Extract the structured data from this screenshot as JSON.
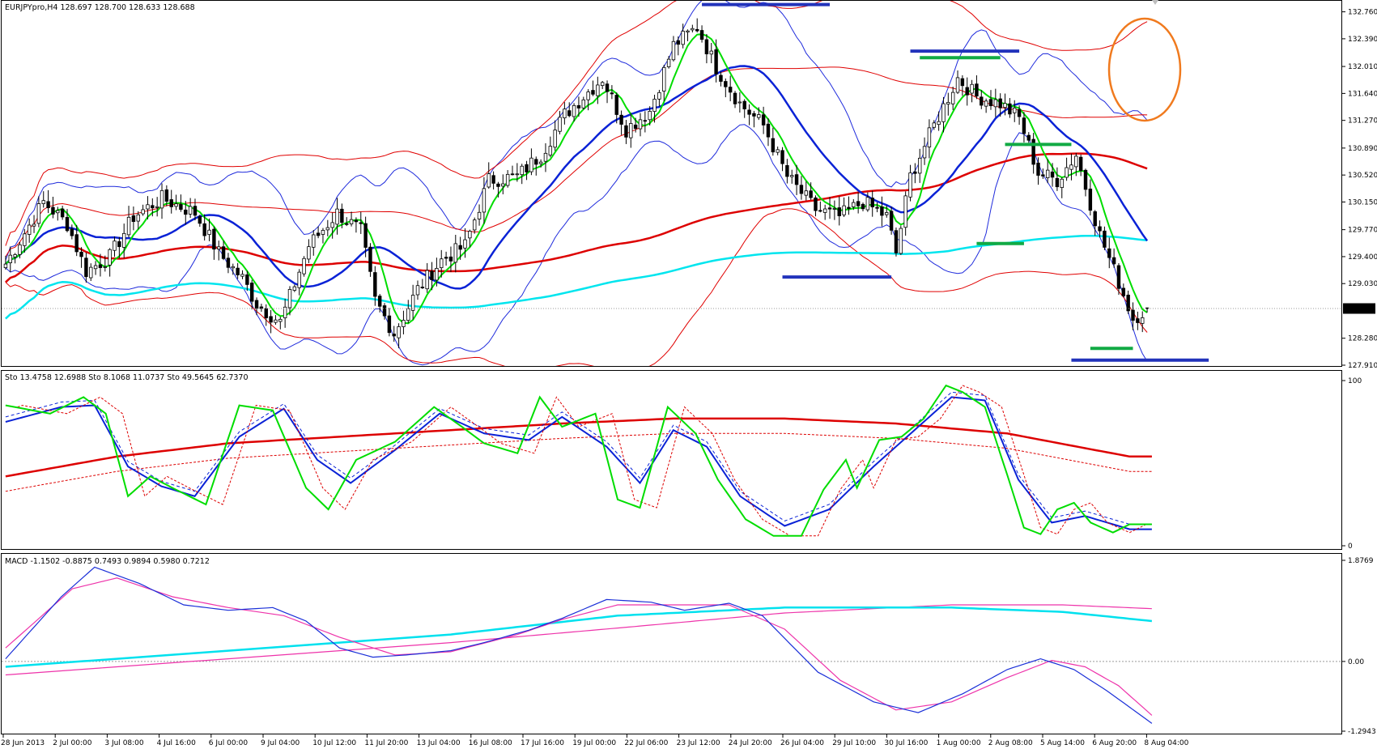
{
  "colors": {
    "background": "#ffffff",
    "frame": "#000000",
    "bull_body": "#ffffff",
    "bear_body": "#000000",
    "ma_fast": "#00dd00",
    "ma_mid": "#0a22d6",
    "ma_slow": "#dd0000",
    "ma_long": "#00e5ee",
    "band_blue": "#1f2bdc",
    "band_red": "#e00000",
    "marker_blue": "#2233bb",
    "marker_green": "#11aa44",
    "ellipse": "#f07a1e",
    "price_tag_bg": "#000000",
    "price_tag_text": "#ffffff",
    "macd_main": "#1a2fd8",
    "macd_signal": "#ee33aa",
    "macd_long": "#00e1ee",
    "grid_dotted": "#9a9a9a"
  },
  "header": {
    "price_info": "EURJPYpro,H4  128.697 128.700 128.633 128.688",
    "sto_info": "Sto 13.4758 12.6988  Sto 8.1068 11.0737  Sto 49.5645 62.7370",
    "macd_info": "MACD -1.1502 -0.8875 0.7493 0.9894 0.5980 0.7212"
  },
  "chart_data": [
    {
      "type": "candlestick",
      "symbol": "EURJPYpro",
      "timeframe": "H4",
      "ohlc_last": {
        "open": 128.697,
        "high": 128.7,
        "low": 128.633,
        "close": 128.688
      },
      "current_price_label": "128.688",
      "ylim": [
        127.91,
        132.9
      ],
      "y_ticks": [
        "132.760",
        "132.390",
        "132.010",
        "131.640",
        "131.270",
        "130.890",
        "130.520",
        "130.150",
        "129.770",
        "129.400",
        "129.030",
        "128.280",
        "127.910"
      ],
      "x_ticks": [
        "28 Jun 2013",
        "2 Jul 00:00",
        "3 Jul 08:00",
        "4 Jul 16:00",
        "6 Jul 00:00",
        "9 Jul 04:00",
        "10 Jul 12:00",
        "11 Jul 20:00",
        "13 Jul 04:00",
        "16 Jul 08:00",
        "17 Jul 16:00",
        "19 Jul 00:00",
        "22 Jul 06:00",
        "23 Jul 12:00",
        "24 Jul 20:00",
        "26 Jul 04:00",
        "29 Jul 10:00",
        "30 Jul 16:00",
        "1 Aug 00:00",
        "2 Aug 08:00",
        "5 Aug 14:00",
        "6 Aug 20:00",
        "8 Aug 04:00"
      ],
      "price_path": [
        [
          0,
          129.3
        ],
        [
          8,
          130.15
        ],
        [
          13,
          129.85
        ],
        [
          17,
          129.2
        ],
        [
          22,
          129.4
        ],
        [
          27,
          129.95
        ],
        [
          33,
          130.2
        ],
        [
          40,
          130.0
        ],
        [
          45,
          129.45
        ],
        [
          50,
          129.1
        ],
        [
          53,
          128.75
        ],
        [
          58,
          128.5
        ],
        [
          64,
          129.55
        ],
        [
          70,
          130.0
        ],
        [
          75,
          129.75
        ],
        [
          78,
          128.8
        ],
        [
          82,
          128.35
        ],
        [
          87,
          128.95
        ],
        [
          92,
          129.35
        ],
        [
          97,
          129.55
        ],
        [
          102,
          130.45
        ],
        [
          108,
          130.5
        ],
        [
          113,
          130.8
        ],
        [
          118,
          131.35
        ],
        [
          122,
          131.6
        ],
        [
          126,
          131.85
        ],
        [
          131,
          131.15
        ],
        [
          136,
          131.4
        ],
        [
          141,
          132.3
        ],
        [
          146,
          132.55
        ],
        [
          150,
          132.0
        ],
        [
          155,
          131.5
        ],
        [
          160,
          131.2
        ],
        [
          165,
          130.5
        ],
        [
          171,
          130.05
        ],
        [
          176,
          129.95
        ],
        [
          181,
          130.15
        ],
        [
          186,
          129.95
        ],
        [
          188,
          129.45
        ],
        [
          191,
          130.5
        ],
        [
          196,
          131.2
        ],
        [
          201,
          131.85
        ],
        [
          205,
          131.6
        ],
        [
          210,
          131.5
        ],
        [
          214,
          131.3
        ],
        [
          218,
          130.55
        ],
        [
          222,
          130.45
        ],
        [
          226,
          130.8
        ],
        [
          231,
          129.7
        ],
        [
          235,
          129.05
        ],
        [
          238,
          128.55
        ],
        [
          241,
          128.69
        ]
      ]
    },
    {
      "type": "line",
      "indicator": "Stochastic",
      "ylim": [
        0,
        100
      ],
      "y_ticks": [
        "100",
        "0"
      ],
      "main": [
        [
          0,
          85
        ],
        [
          8,
          80
        ],
        [
          14,
          90
        ],
        [
          18,
          80
        ],
        [
          22,
          30
        ],
        [
          26,
          42
        ],
        [
          30,
          35
        ],
        [
          36,
          25
        ],
        [
          42,
          85
        ],
        [
          48,
          82
        ],
        [
          54,
          35
        ],
        [
          58,
          22
        ],
        [
          63,
          52
        ],
        [
          70,
          63
        ],
        [
          77,
          84
        ],
        [
          82,
          72
        ],
        [
          86,
          62
        ],
        [
          92,
          56
        ],
        [
          96,
          90
        ],
        [
          100,
          72
        ],
        [
          106,
          80
        ],
        [
          110,
          28
        ],
        [
          114,
          23
        ],
        [
          119,
          84
        ],
        [
          124,
          68
        ],
        [
          128,
          40
        ],
        [
          133,
          16
        ],
        [
          138,
          6
        ],
        [
          143,
          6
        ],
        [
          147,
          34
        ],
        [
          151,
          52
        ],
        [
          153,
          35
        ],
        [
          157,
          64
        ],
        [
          161,
          66
        ],
        [
          165,
          77
        ],
        [
          169,
          97
        ],
        [
          172,
          93
        ],
        [
          176,
          84
        ],
        [
          180,
          43
        ],
        [
          183,
          11
        ],
        [
          186,
          7
        ],
        [
          189,
          22
        ],
        [
          192,
          26
        ],
        [
          195,
          14
        ],
        [
          199,
          8
        ],
        [
          202,
          13
        ]
      ],
      "signal": [
        [
          0,
          75
        ],
        [
          10,
          84
        ],
        [
          16,
          85
        ],
        [
          22,
          48
        ],
        [
          28,
          36
        ],
        [
          34,
          30
        ],
        [
          42,
          66
        ],
        [
          50,
          83
        ],
        [
          56,
          52
        ],
        [
          62,
          38
        ],
        [
          70,
          58
        ],
        [
          78,
          80
        ],
        [
          86,
          68
        ],
        [
          94,
          64
        ],
        [
          100,
          78
        ],
        [
          108,
          60
        ],
        [
          114,
          38
        ],
        [
          120,
          70
        ],
        [
          126,
          60
        ],
        [
          132,
          30
        ],
        [
          140,
          12
        ],
        [
          148,
          22
        ],
        [
          156,
          48
        ],
        [
          164,
          72
        ],
        [
          170,
          90
        ],
        [
          176,
          88
        ],
        [
          182,
          40
        ],
        [
          188,
          14
        ],
        [
          194,
          18
        ],
        [
          202,
          10
        ]
      ],
      "slow": [
        [
          0,
          42
        ],
        [
          20,
          54
        ],
        [
          40,
          62
        ],
        [
          60,
          66
        ],
        [
          80,
          70
        ],
        [
          100,
          74
        ],
        [
          120,
          77
        ],
        [
          140,
          77
        ],
        [
          160,
          74
        ],
        [
          180,
          68
        ],
        [
          202,
          54
        ]
      ]
    },
    {
      "type": "line",
      "indicator": "MACD",
      "ylim": [
        -1.2943,
        1.8769
      ],
      "y_ticks": [
        "1.8769",
        "0.00",
        "-1.2943"
      ],
      "main": [
        [
          0,
          0.05
        ],
        [
          10,
          1.2
        ],
        [
          16,
          1.75
        ],
        [
          24,
          1.45
        ],
        [
          32,
          1.05
        ],
        [
          40,
          0.95
        ],
        [
          48,
          1.0
        ],
        [
          54,
          0.75
        ],
        [
          60,
          0.25
        ],
        [
          66,
          0.08
        ],
        [
          72,
          0.12
        ],
        [
          80,
          0.2
        ],
        [
          86,
          0.35
        ],
        [
          94,
          0.58
        ],
        [
          100,
          0.8
        ],
        [
          108,
          1.15
        ],
        [
          116,
          1.1
        ],
        [
          122,
          0.95
        ],
        [
          130,
          1.08
        ],
        [
          136,
          0.85
        ],
        [
          146,
          -0.2
        ],
        [
          156,
          -0.75
        ],
        [
          164,
          -0.95
        ],
        [
          172,
          -0.6
        ],
        [
          180,
          -0.15
        ],
        [
          186,
          0.05
        ],
        [
          192,
          -0.15
        ],
        [
          198,
          -0.55
        ],
        [
          206,
          -1.15
        ]
      ],
      "signal": [
        [
          0,
          0.25
        ],
        [
          12,
          1.35
        ],
        [
          20,
          1.55
        ],
        [
          30,
          1.2
        ],
        [
          40,
          1.0
        ],
        [
          50,
          0.85
        ],
        [
          60,
          0.45
        ],
        [
          70,
          0.12
        ],
        [
          80,
          0.18
        ],
        [
          92,
          0.5
        ],
        [
          100,
          0.78
        ],
        [
          110,
          1.05
        ],
        [
          120,
          1.05
        ],
        [
          130,
          1.05
        ],
        [
          140,
          0.6
        ],
        [
          150,
          -0.35
        ],
        [
          160,
          -0.9
        ],
        [
          170,
          -0.75
        ],
        [
          180,
          -0.3
        ],
        [
          188,
          0.02
        ],
        [
          194,
          -0.1
        ],
        [
          200,
          -0.45
        ],
        [
          206,
          -1.0
        ]
      ],
      "long": [
        [
          0,
          -0.1
        ],
        [
          40,
          0.2
        ],
        [
          80,
          0.5
        ],
        [
          110,
          0.85
        ],
        [
          140,
          1.0
        ],
        [
          170,
          1.0
        ],
        [
          190,
          0.92
        ],
        [
          206,
          0.75
        ]
      ],
      "long2": [
        [
          0,
          -0.25
        ],
        [
          40,
          0.05
        ],
        [
          80,
          0.35
        ],
        [
          110,
          0.62
        ],
        [
          140,
          0.9
        ],
        [
          170,
          1.05
        ],
        [
          190,
          1.05
        ],
        [
          206,
          0.98
        ]
      ]
    }
  ]
}
